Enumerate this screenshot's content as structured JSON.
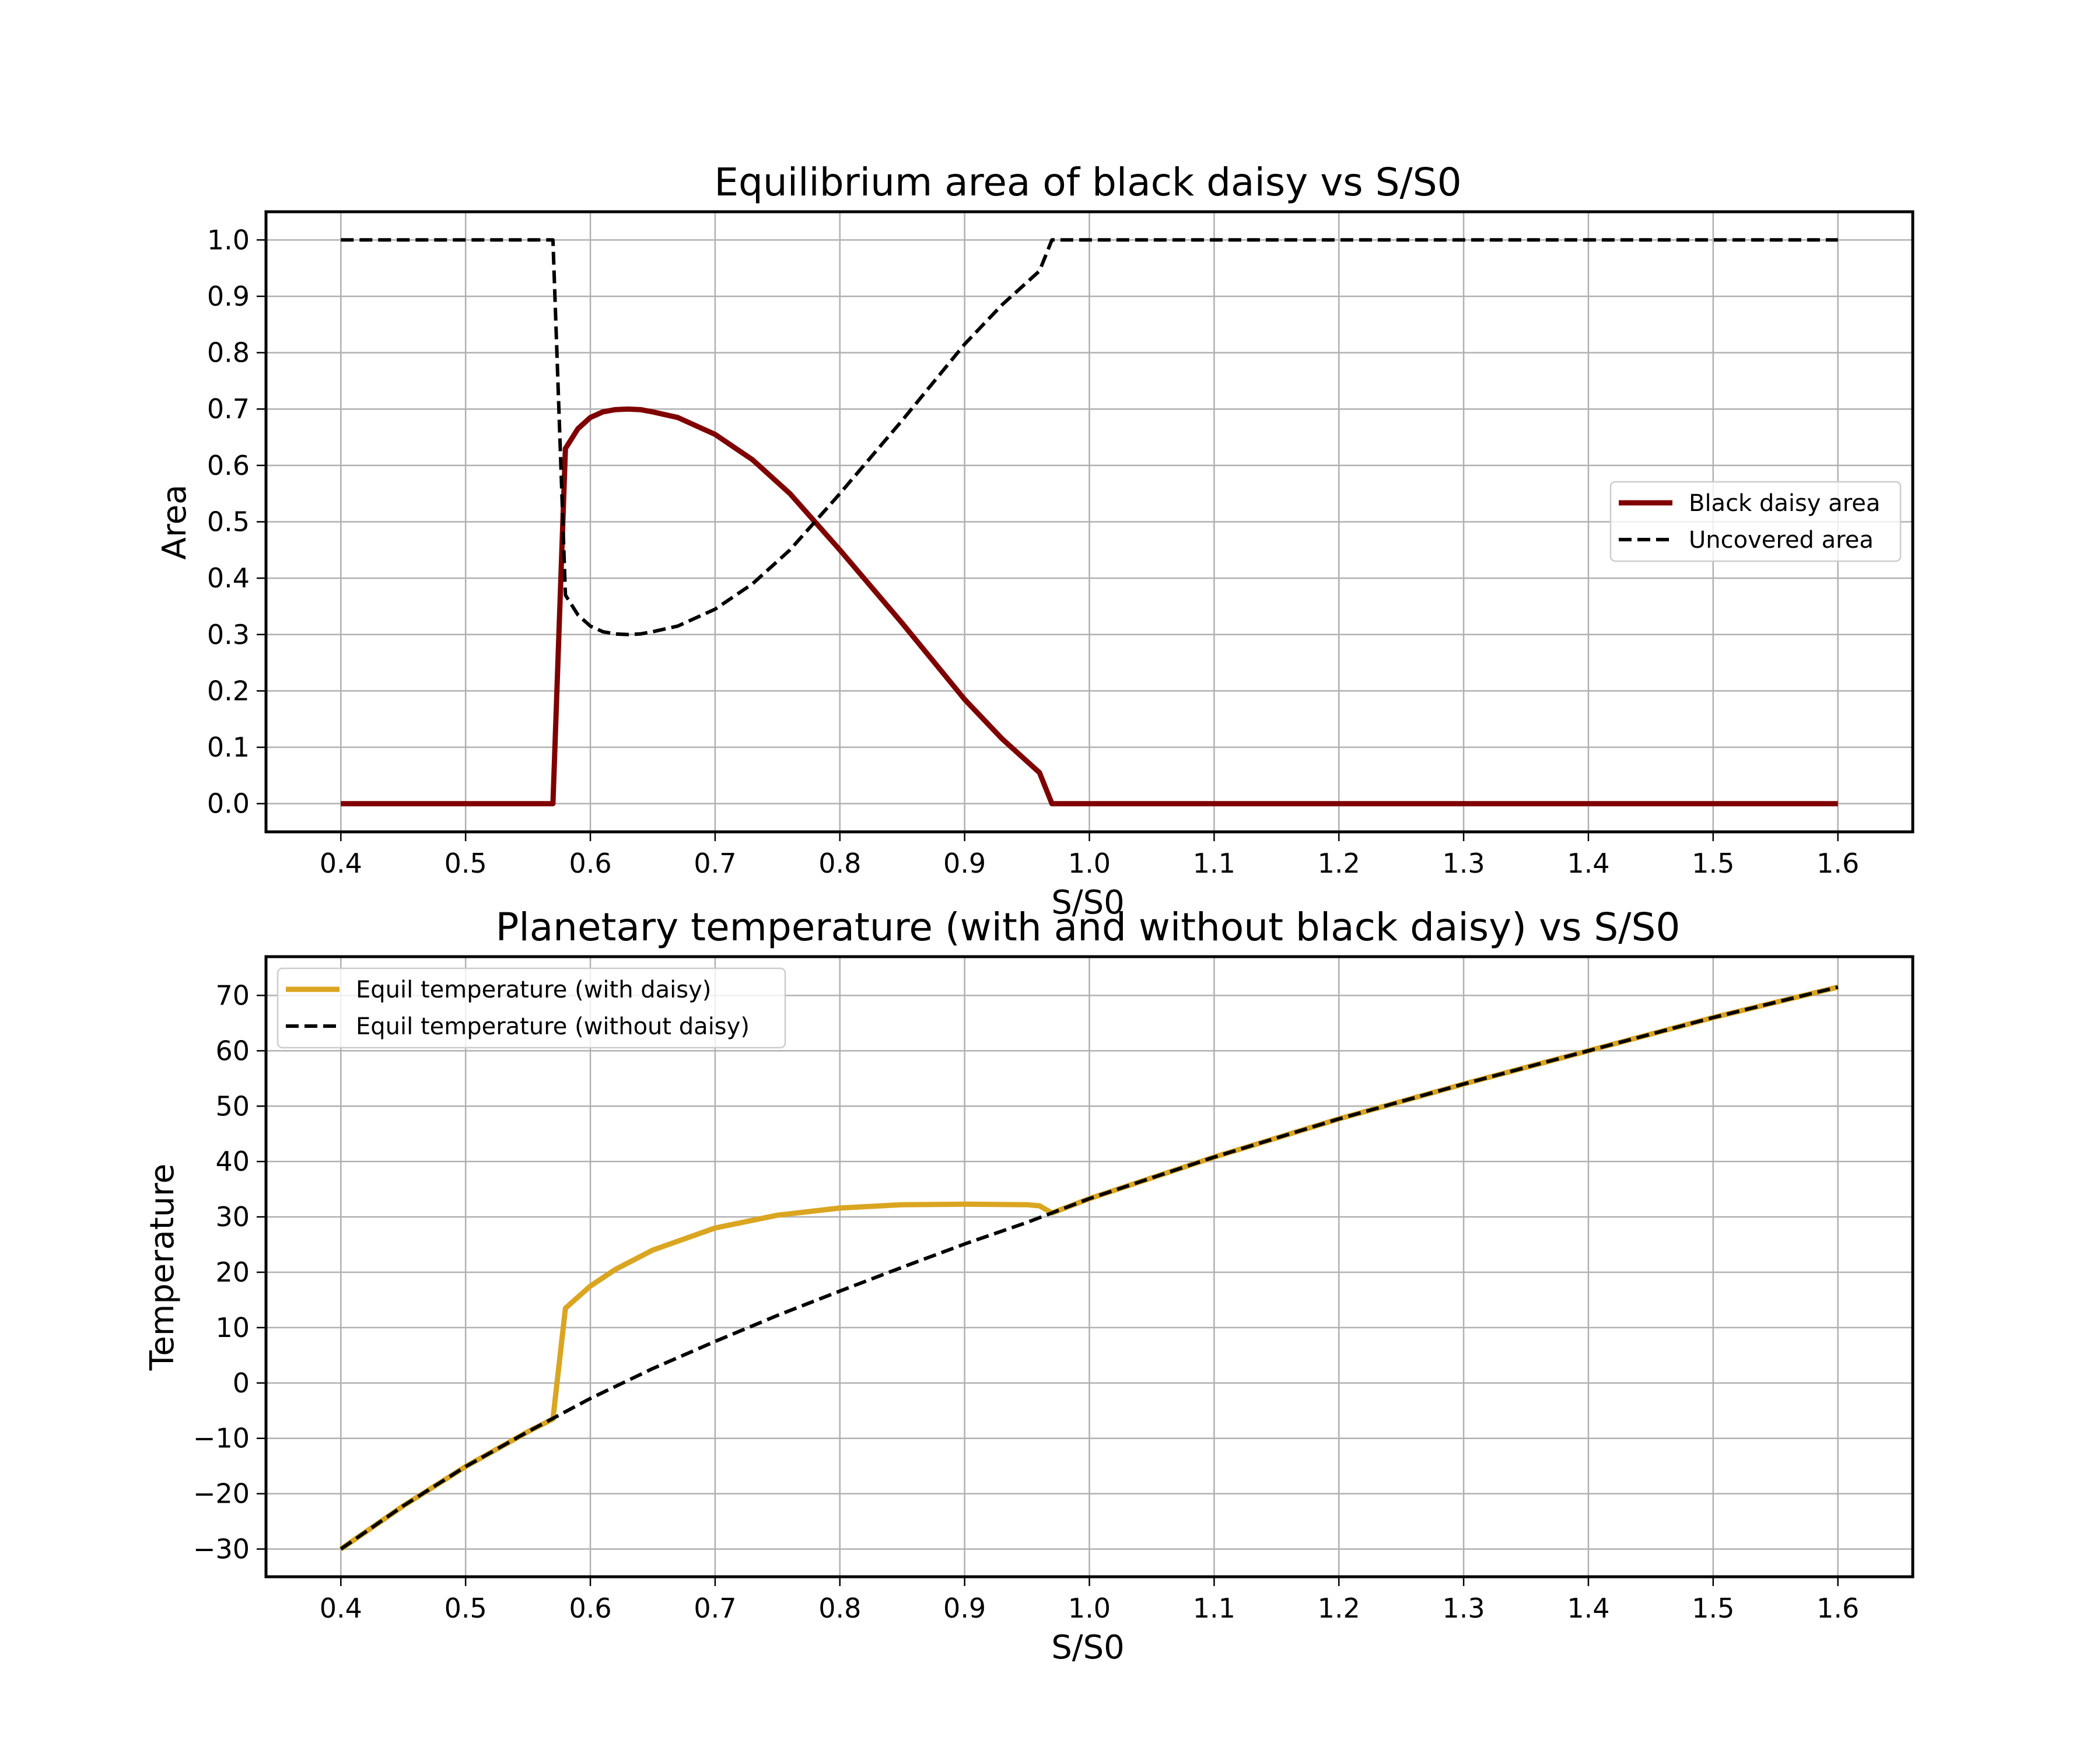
{
  "chart_data": [
    {
      "type": "line",
      "title": "Equilibrium area of black daisy vs S/S0",
      "xlabel": "S/S0",
      "ylabel": "Area",
      "xlim": [
        0.34,
        1.66
      ],
      "ylim": [
        -0.05,
        1.05
      ],
      "x_ticks": [
        "0.4",
        "0.5",
        "0.6",
        "0.7",
        "0.8",
        "0.9",
        "1.0",
        "1.1",
        "1.2",
        "1.3",
        "1.4",
        "1.5",
        "1.6"
      ],
      "y_ticks": [
        "0.0",
        "0.1",
        "0.2",
        "0.3",
        "0.4",
        "0.5",
        "0.6",
        "0.7",
        "0.8",
        "0.9",
        "1.0"
      ],
      "grid": true,
      "legend_position": "center-right",
      "series": [
        {
          "name": "Black daisy area",
          "color": "#800000",
          "dash": "solid",
          "x": [
            0.4,
            0.5,
            0.57,
            0.58,
            0.59,
            0.6,
            0.61,
            0.62,
            0.63,
            0.64,
            0.65,
            0.67,
            0.7,
            0.73,
            0.76,
            0.8,
            0.85,
            0.9,
            0.93,
            0.96,
            0.97,
            1.0,
            1.1,
            1.2,
            1.3,
            1.4,
            1.5,
            1.6
          ],
          "y": [
            0.0,
            0.0,
            0.0,
            0.63,
            0.665,
            0.685,
            0.695,
            0.699,
            0.7,
            0.699,
            0.695,
            0.685,
            0.655,
            0.61,
            0.55,
            0.45,
            0.32,
            0.185,
            0.115,
            0.055,
            0.0,
            0.0,
            0.0,
            0.0,
            0.0,
            0.0,
            0.0,
            0.0
          ]
        },
        {
          "name": "Uncovered area",
          "color": "#000000",
          "dash": "dashed",
          "x": [
            0.4,
            0.5,
            0.57,
            0.58,
            0.59,
            0.6,
            0.61,
            0.62,
            0.63,
            0.64,
            0.65,
            0.67,
            0.7,
            0.73,
            0.76,
            0.8,
            0.85,
            0.9,
            0.93,
            0.96,
            0.97,
            1.0,
            1.1,
            1.2,
            1.3,
            1.4,
            1.5,
            1.6
          ],
          "y": [
            1.0,
            1.0,
            1.0,
            0.37,
            0.335,
            0.315,
            0.305,
            0.301,
            0.3,
            0.301,
            0.305,
            0.315,
            0.345,
            0.39,
            0.45,
            0.55,
            0.68,
            0.815,
            0.885,
            0.945,
            1.0,
            1.0,
            1.0,
            1.0,
            1.0,
            1.0,
            1.0,
            1.0
          ]
        }
      ]
    },
    {
      "type": "line",
      "title": "Planetary temperature (with and without black daisy) vs S/S0",
      "xlabel": "S/S0",
      "ylabel": "Temperature",
      "xlim": [
        0.34,
        1.66
      ],
      "ylim": [
        -35,
        77
      ],
      "x_ticks": [
        "0.4",
        "0.5",
        "0.6",
        "0.7",
        "0.8",
        "0.9",
        "1.0",
        "1.1",
        "1.2",
        "1.3",
        "1.4",
        "1.5",
        "1.6"
      ],
      "y_ticks": [
        "−30",
        "−20",
        "−10",
        "0",
        "10",
        "20",
        "30",
        "40",
        "50",
        "60",
        "70"
      ],
      "grid": true,
      "legend_position": "upper-left",
      "series": [
        {
          "name": "Equil temperature (with daisy)",
          "color": "#DAA520",
          "dash": "solid",
          "x": [
            0.4,
            0.45,
            0.5,
            0.55,
            0.57,
            0.58,
            0.6,
            0.62,
            0.65,
            0.7,
            0.75,
            0.8,
            0.85,
            0.9,
            0.95,
            0.96,
            0.97,
            1.0,
            1.1,
            1.2,
            1.3,
            1.4,
            1.5,
            1.6
          ],
          "y": [
            -30,
            -22.2,
            -15.1,
            -8.8,
            -6.5,
            13.5,
            17.5,
            20.5,
            24,
            28,
            30.3,
            31.6,
            32.2,
            32.3,
            32.2,
            32.0,
            30.7,
            33.3,
            40.8,
            47.7,
            54.0,
            60.0,
            66.0,
            71.5
          ]
        },
        {
          "name": "Equil temperature (without daisy)",
          "color": "#000000",
          "dash": "dashed",
          "x": [
            0.4,
            0.45,
            0.5,
            0.55,
            0.6,
            0.65,
            0.7,
            0.75,
            0.8,
            0.85,
            0.9,
            0.95,
            1.0,
            1.1,
            1.2,
            1.3,
            1.4,
            1.5,
            1.6
          ],
          "y": [
            -30,
            -22.2,
            -15.1,
            -8.8,
            -2.8,
            2.6,
            7.5,
            12.2,
            16.6,
            20.9,
            25.1,
            29.0,
            33.3,
            40.8,
            47.7,
            54.0,
            60.0,
            66.0,
            71.5
          ]
        }
      ]
    }
  ]
}
